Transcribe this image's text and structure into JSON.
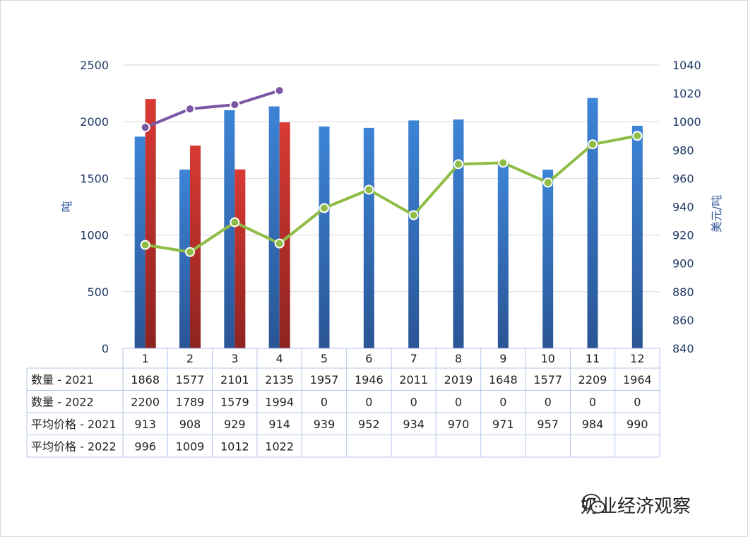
{
  "chart_data": {
    "type": "bar",
    "categories": [
      "1",
      "2",
      "3",
      "4",
      "5",
      "6",
      "7",
      "8",
      "9",
      "10",
      "11",
      "12"
    ],
    "series": [
      {
        "name": "数量  - 2021",
        "kind": "bar",
        "axis": "left",
        "color": "#3a78c3",
        "values": [
          1868,
          1577,
          2101,
          2135,
          1957,
          1946,
          2011,
          2019,
          1648,
          1577,
          2209,
          1964
        ]
      },
      {
        "name": "数量  - 2022",
        "kind": "bar",
        "axis": "left",
        "color": "#c9302c",
        "values": [
          2200,
          1789,
          1579,
          1994,
          0,
          0,
          0,
          0,
          0,
          0,
          0,
          0
        ]
      },
      {
        "name": "平均价格 - 2021",
        "kind": "line",
        "axis": "right",
        "color": "#8fbc45",
        "values": [
          913,
          908,
          929,
          914,
          939,
          952,
          934,
          970,
          971,
          957,
          984,
          990
        ]
      },
      {
        "name": "平均价格 - 2022",
        "kind": "line",
        "axis": "right",
        "color": "#7a56a4",
        "values": [
          996,
          1009,
          1012,
          1022,
          null,
          null,
          null,
          null,
          null,
          null,
          null,
          null
        ]
      }
    ],
    "ylabel": "吨",
    "y2label": "美元/吨",
    "ylim": [
      0,
      2500
    ],
    "y2lim": [
      840,
      1040
    ],
    "yticks": [
      "0",
      "500",
      "1000",
      "1500",
      "2000",
      "2500"
    ],
    "y2ticks": [
      "840",
      "860",
      "880",
      "900",
      "920",
      "940",
      "960",
      "980",
      "1000",
      "1020",
      "1040"
    ],
    "grid": true,
    "data_table": true
  },
  "watermark": {
    "text": "奶业经济观察",
    "icon": "wechat-icon"
  }
}
